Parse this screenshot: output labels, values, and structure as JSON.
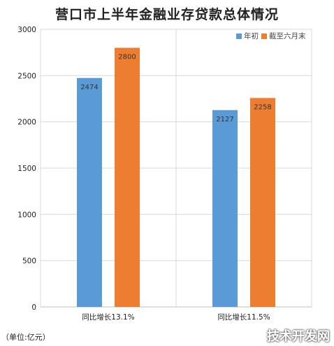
{
  "title": "营口市上半年金融业存贷款总体情况",
  "unit_note": "（单位:亿元）",
  "watermark": "技术开发网",
  "colors": {
    "blue": "#5b9bd5",
    "orange": "#ed7d31",
    "grid": "#d9d9d9",
    "axis_text": "#595959"
  },
  "chart_data": {
    "type": "bar",
    "title": "营口市上半年金融业存贷款总体情况",
    "categories": [
      "同比增长13.1%",
      "同比增长11.5%"
    ],
    "series": [
      {
        "name": "年初",
        "color": "#5b9bd5",
        "values": [
          2474,
          2127
        ]
      },
      {
        "name": "截至六月末",
        "color": "#ed7d31",
        "values": [
          2800,
          2258
        ]
      }
    ],
    "ylim": [
      0,
      3000
    ],
    "yticks": [
      0,
      500,
      1000,
      1500,
      2000,
      2500,
      3000
    ],
    "data_labels": true,
    "grid": true,
    "legend_position": "top-right",
    "xlabel": "",
    "ylabel": ""
  }
}
